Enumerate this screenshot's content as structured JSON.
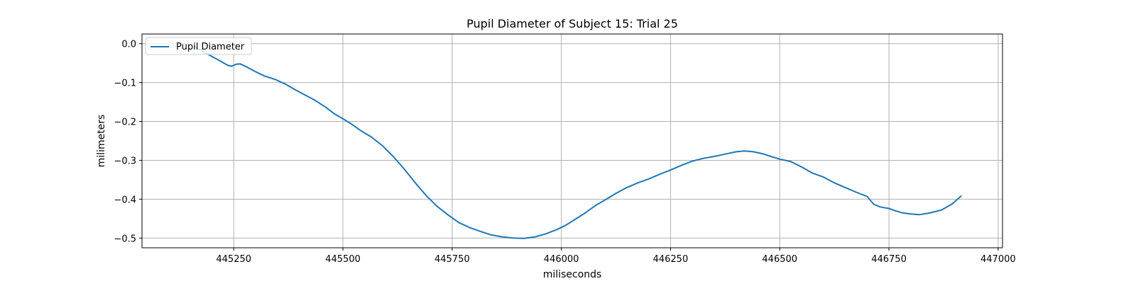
{
  "chart_data": {
    "type": "line",
    "title": "Pupil Diameter of Subject 15: Trial 25",
    "xlabel": "miliseconds",
    "ylabel": "milimeters",
    "xlim": [
      445040,
      447010
    ],
    "ylim": [
      -0.525,
      0.025
    ],
    "xticks": [
      445250,
      445500,
      445750,
      446000,
      446250,
      446500,
      446750,
      447000
    ],
    "xtick_labels": [
      "445250",
      "445500",
      "445750",
      "446000",
      "446250",
      "446500",
      "446750",
      "447000"
    ],
    "yticks": [
      0.0,
      -0.1,
      -0.2,
      -0.3,
      -0.4,
      -0.5
    ],
    "ytick_labels": [
      "0.0",
      "−0.1",
      "−0.2",
      "−0.3",
      "−0.4",
      "−0.5"
    ],
    "grid": true,
    "legend_position": "upper-left",
    "series": [
      {
        "name": "Pupil Diameter",
        "color": "#1f77b4",
        "points": [
          [
            445160,
            -0.008
          ],
          [
            445180,
            -0.02
          ],
          [
            445200,
            -0.033
          ],
          [
            445220,
            -0.045
          ],
          [
            445235,
            -0.055
          ],
          [
            445245,
            -0.058
          ],
          [
            445255,
            -0.053
          ],
          [
            445265,
            -0.052
          ],
          [
            445280,
            -0.06
          ],
          [
            445300,
            -0.072
          ],
          [
            445320,
            -0.083
          ],
          [
            445345,
            -0.092
          ],
          [
            445370,
            -0.105
          ],
          [
            445390,
            -0.118
          ],
          [
            445410,
            -0.13
          ],
          [
            445435,
            -0.145
          ],
          [
            445460,
            -0.163
          ],
          [
            445480,
            -0.18
          ],
          [
            445500,
            -0.193
          ],
          [
            445520,
            -0.207
          ],
          [
            445540,
            -0.223
          ],
          [
            445565,
            -0.24
          ],
          [
            445590,
            -0.262
          ],
          [
            445615,
            -0.29
          ],
          [
            445640,
            -0.322
          ],
          [
            445665,
            -0.357
          ],
          [
            445690,
            -0.39
          ],
          [
            445715,
            -0.418
          ],
          [
            445740,
            -0.44
          ],
          [
            445765,
            -0.46
          ],
          [
            445790,
            -0.473
          ],
          [
            445815,
            -0.483
          ],
          [
            445840,
            -0.492
          ],
          [
            445865,
            -0.497
          ],
          [
            445890,
            -0.5
          ],
          [
            445915,
            -0.501
          ],
          [
            445940,
            -0.497
          ],
          [
            445965,
            -0.489
          ],
          [
            445990,
            -0.478
          ],
          [
            446010,
            -0.467
          ],
          [
            446030,
            -0.453
          ],
          [
            446055,
            -0.435
          ],
          [
            446080,
            -0.415
          ],
          [
            446100,
            -0.402
          ],
          [
            446125,
            -0.385
          ],
          [
            446150,
            -0.37
          ],
          [
            446175,
            -0.358
          ],
          [
            446200,
            -0.348
          ],
          [
            446225,
            -0.336
          ],
          [
            446250,
            -0.325
          ],
          [
            446275,
            -0.313
          ],
          [
            446300,
            -0.302
          ],
          [
            446325,
            -0.295
          ],
          [
            446350,
            -0.29
          ],
          [
            446375,
            -0.284
          ],
          [
            446400,
            -0.278
          ],
          [
            446420,
            -0.276
          ],
          [
            446440,
            -0.278
          ],
          [
            446460,
            -0.283
          ],
          [
            446480,
            -0.29
          ],
          [
            446500,
            -0.297
          ],
          [
            446525,
            -0.303
          ],
          [
            446550,
            -0.317
          ],
          [
            446575,
            -0.333
          ],
          [
            446600,
            -0.343
          ],
          [
            446625,
            -0.358
          ],
          [
            446650,
            -0.37
          ],
          [
            446675,
            -0.382
          ],
          [
            446700,
            -0.393
          ],
          [
            446715,
            -0.413
          ],
          [
            446730,
            -0.42
          ],
          [
            446750,
            -0.424
          ],
          [
            446765,
            -0.43
          ],
          [
            446780,
            -0.435
          ],
          [
            446800,
            -0.438
          ],
          [
            446820,
            -0.44
          ],
          [
            446845,
            -0.435
          ],
          [
            446870,
            -0.428
          ],
          [
            446895,
            -0.412
          ],
          [
            446915,
            -0.392
          ]
        ]
      }
    ]
  }
}
